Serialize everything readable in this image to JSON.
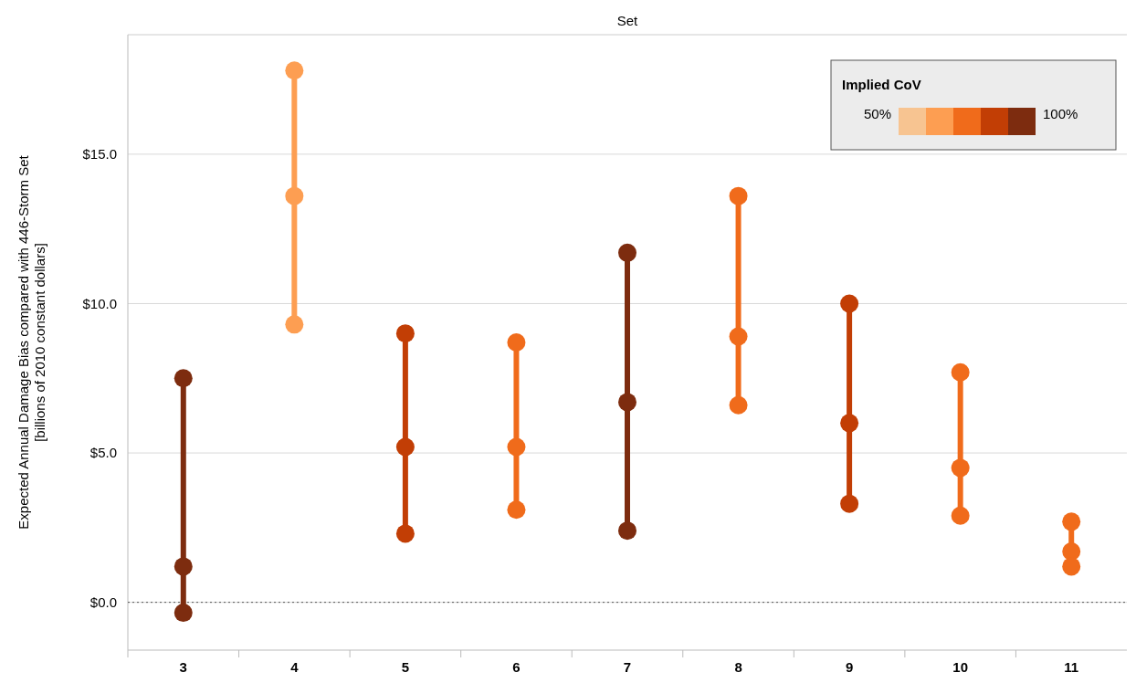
{
  "chart_data": {
    "type": "line",
    "xlabel": "Set",
    "ylabel": "Expected Annual Damage Bias compared with 446-Storm Set\n[billions of 2010 constant dollars]",
    "categories": [
      "3",
      "4",
      "5",
      "6",
      "7",
      "8",
      "9",
      "10",
      "11"
    ],
    "series": [
      {
        "color": "#7d2c0f",
        "x": [
          "3",
          "3",
          "3"
        ],
        "values": [
          7.5,
          1.2,
          -0.35
        ]
      },
      {
        "color": "#fd9e52",
        "x": [
          "4",
          "4",
          "4"
        ],
        "values": [
          17.8,
          13.6,
          9.3
        ]
      },
      {
        "color": "#c23e05",
        "x": [
          "5",
          "5",
          "5"
        ],
        "values": [
          9.0,
          5.2,
          2.3
        ]
      },
      {
        "color": "#f06b1b",
        "x": [
          "6",
          "6",
          "6"
        ],
        "values": [
          8.7,
          5.2,
          3.1
        ]
      },
      {
        "color": "#7d2c0f",
        "x": [
          "7",
          "7",
          "7"
        ],
        "values": [
          11.7,
          6.7,
          2.4
        ]
      },
      {
        "color": "#f06b1b",
        "x": [
          "8",
          "8",
          "8"
        ],
        "values": [
          13.6,
          8.9,
          6.6
        ]
      },
      {
        "color": "#c23e05",
        "x": [
          "9",
          "9",
          "9"
        ],
        "values": [
          10.0,
          6.0,
          3.3
        ]
      },
      {
        "color": "#f06b1b",
        "x": [
          "10",
          "10",
          "10"
        ],
        "values": [
          7.7,
          4.5,
          2.9
        ]
      },
      {
        "color": "#f06b1b",
        "x": [
          "11",
          "11",
          "11"
        ],
        "values": [
          2.7,
          1.7,
          1.2
        ]
      }
    ],
    "clabel": "Implied CoV",
    "annotations": [
      "50%",
      "100%"
    ],
    "ylim": [
      -1.6,
      19
    ],
    "yticks": [
      {
        "value": 0,
        "label": "$0.0"
      },
      {
        "value": 5,
        "label": "$5.0"
      },
      {
        "value": 10,
        "label": "$10.0"
      },
      {
        "value": 15,
        "label": "$15.0"
      }
    ],
    "ref_lines": [
      {
        "axis": "y",
        "value": 0,
        "line_style": "dotted",
        "color": "#555555"
      }
    ],
    "grid": "y",
    "marker": "circle"
  }
}
